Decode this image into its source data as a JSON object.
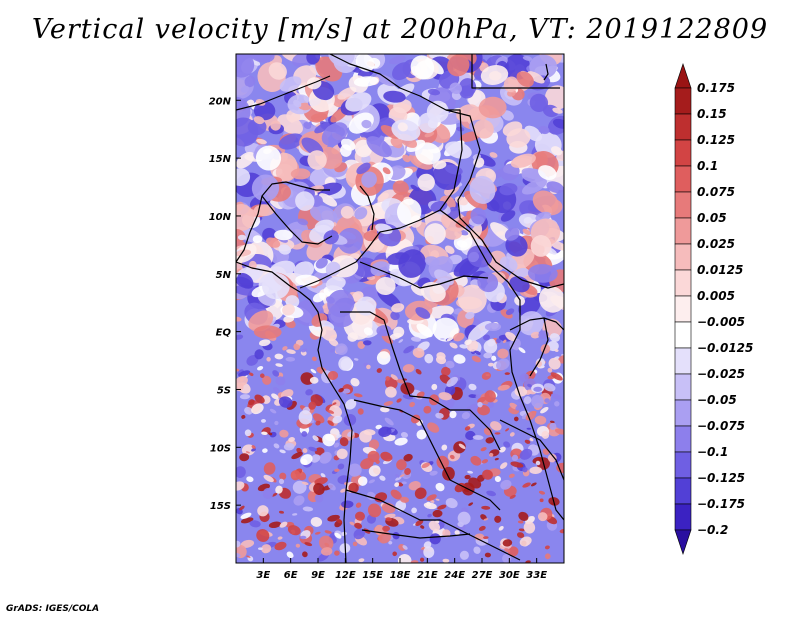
{
  "title": "Vertical velocity [m/s] at 200hPa, VT: 2019122809",
  "credit": "GrADS: IGES/COLA",
  "map": {
    "lon_range": [
      0,
      36
    ],
    "lat_range": [
      -20,
      24
    ],
    "lat_ticks": [
      {
        "lat": 20,
        "label": "20N"
      },
      {
        "lat": 15,
        "label": "15N"
      },
      {
        "lat": 10,
        "label": "10N"
      },
      {
        "lat": 5,
        "label": "5N"
      },
      {
        "lat": 0,
        "label": "EQ"
      },
      {
        "lat": -5,
        "label": "5S"
      },
      {
        "lat": -10,
        "label": "10S"
      },
      {
        "lat": -15,
        "label": "15S"
      }
    ],
    "lon_ticks": [
      {
        "lon": 3,
        "label": "3E"
      },
      {
        "lon": 6,
        "label": "6E"
      },
      {
        "lon": 9,
        "label": "9E"
      },
      {
        "lon": 12,
        "label": "12E"
      },
      {
        "lon": 15,
        "label": "15E"
      },
      {
        "lon": 18,
        "label": "18E"
      },
      {
        "lon": 21,
        "label": "21E"
      },
      {
        "lon": 24,
        "label": "24E"
      },
      {
        "lon": 27,
        "label": "27E"
      },
      {
        "lon": 30,
        "label": "30E"
      },
      {
        "lon": 33,
        "label": "33E"
      }
    ]
  },
  "colorbar": {
    "top_color": "#9a1414",
    "bottom_color": "#2a0fa0",
    "bins": [
      {
        "label": "0.175",
        "color": "#a51c1c"
      },
      {
        "label": "0.15",
        "color": "#be2f2f"
      },
      {
        "label": "0.125",
        "color": "#d24444"
      },
      {
        "label": "0.1",
        "color": "#df5e5e"
      },
      {
        "label": "0.075",
        "color": "#e77a7a"
      },
      {
        "label": "0.05",
        "color": "#ef9a9a"
      },
      {
        "label": "0.025",
        "color": "#f6bcbc"
      },
      {
        "label": "0.0125",
        "color": "#fbd8d8"
      },
      {
        "label": "0.005",
        "color": "#fdeeee"
      },
      {
        "label": "−0.005",
        "color": "#ffffff"
      },
      {
        "label": "−0.0125",
        "color": "#e4e0fb"
      },
      {
        "label": "−0.025",
        "color": "#c8c0f7"
      },
      {
        "label": "−0.05",
        "color": "#aa9ff2"
      },
      {
        "label": "−0.075",
        "color": "#8d7fec"
      },
      {
        "label": "−0.1",
        "color": "#6f5fe3"
      },
      {
        "label": "−0.125",
        "color": "#5240d6"
      },
      {
        "label": "−0.175",
        "color": "#3b22c2"
      },
      {
        "label": "−0.2",
        "color": "#2a12a8"
      }
    ]
  }
}
